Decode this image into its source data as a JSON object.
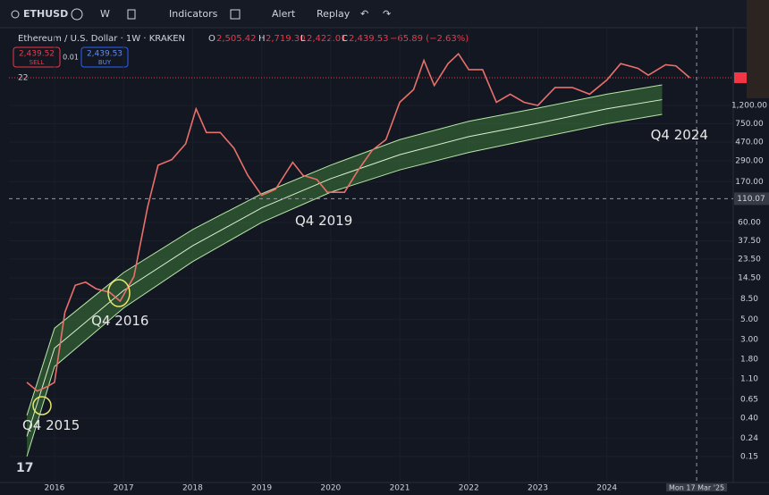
{
  "toolbar": {
    "symbol": "ETHUSD",
    "interval": "W",
    "indicators": "Indicators",
    "alert": "Alert",
    "replay": "Replay"
  },
  "legend": {
    "title": "Ethereum / U.S. Dollar · 1W · KRAKEN",
    "o_label": "O",
    "open": "2,505.42",
    "h_label": "H",
    "high": "2,719.30",
    "l_label": "L",
    "low": "2,422.01",
    "c_label": "C",
    "close": "2,439.53",
    "change": "−65.89 (−2.63%)",
    "sell_price": "2,439.52",
    "sell": "SELL",
    "spread": "0.01",
    "buy_price": "2,439.53",
    "buy": "BUY",
    "count": "22"
  },
  "chart_data": {
    "type": "line",
    "log_scale": true,
    "series": [
      {
        "color": "#e8706a",
        "x": [
          2015.6,
          2015.75,
          2015.9,
          2016.0,
          2016.15,
          2016.3,
          2016.45,
          2016.6,
          2016.8,
          2016.95,
          2017.15,
          2017.35,
          2017.5,
          2017.7,
          2017.9,
          2018.05,
          2018.2,
          2018.4,
          2018.6,
          2018.8,
          2019.0,
          2019.2,
          2019.45,
          2019.6,
          2019.8,
          2019.95,
          2020.2,
          2020.4,
          2020.6,
          2020.8,
          2021.0,
          2021.2,
          2021.35,
          2021.5,
          2021.7,
          2021.85,
          2022.0,
          2022.2,
          2022.4,
          2022.6,
          2022.8,
          2023.0,
          2023.25,
          2023.5,
          2023.75,
          2024.0,
          2024.2,
          2024.45,
          2024.6,
          2024.85,
          2025.0,
          2025.2
        ],
        "values": [
          1.0,
          0.8,
          0.9,
          1.0,
          6,
          12,
          13,
          11,
          10,
          8,
          15,
          90,
          260,
          300,
          450,
          1100,
          600,
          600,
          400,
          200,
          120,
          140,
          280,
          200,
          180,
          130,
          130,
          230,
          380,
          500,
          1300,
          1800,
          3800,
          2000,
          3500,
          4500,
          3000,
          3000,
          1300,
          1600,
          1300,
          1200,
          1900,
          1900,
          1600,
          2300,
          3500,
          3100,
          2600,
          3400,
          3300,
          2439.53
        ]
      },
      {
        "color": "#b9e6a8",
        "x": [
          2015.6,
          2016,
          2017,
          2018,
          2019,
          2020,
          2021,
          2022,
          2023,
          2024,
          2024.8
        ],
        "values": [
          0.43,
          4,
          16.6,
          50,
          125,
          260,
          500,
          800,
          1120,
          1600,
          2030
        ]
      },
      {
        "color": "#d9f2cf",
        "x": [
          2015.6,
          2016,
          2017,
          2018,
          2019,
          2020,
          2021,
          2022,
          2023,
          2024,
          2024.8
        ],
        "values": [
          0.25,
          2.4,
          10.5,
          33,
          87,
          184,
          340,
          540,
          760,
          1100,
          1390
        ]
      },
      {
        "color": "#b9e6a8",
        "x": [
          2015.6,
          2016,
          2017,
          2018,
          2019,
          2020,
          2021,
          2022,
          2023,
          2024,
          2024.8
        ],
        "values": [
          0.15,
          1.5,
          6.7,
          22,
          60,
          130,
          230,
          360,
          520,
          750,
          955
        ]
      }
    ],
    "band_color": "#3f7a3a",
    "xlim": [
      2015.34,
      2025.83
    ],
    "xticks": [
      2016,
      2017,
      2018,
      2019,
      2020,
      2021,
      2022,
      2023,
      2024
    ],
    "ylim": [
      0.077,
      8980
    ],
    "yticks": [
      0.15,
      0.24,
      {
        "value": 0.4,
        "label": "0.40"
      },
      0.65,
      {
        "value": 1.1,
        "label": "1.10"
      },
      {
        "value": 1.8,
        "label": "1.80"
      },
      {
        "value": 3,
        "label": "3.00"
      },
      {
        "value": 5,
        "label": "5.00"
      },
      {
        "value": 8.5,
        "label": "8.50"
      },
      {
        "value": 14.5,
        "label": "14.50"
      },
      {
        "value": 23.5,
        "label": "23.50"
      },
      {
        "value": 37.5,
        "label": "37.50"
      },
      {
        "value": 60,
        "label": "60.00"
      },
      {
        "value": 170,
        "label": "170.00"
      },
      {
        "value": 290,
        "label": "290.00"
      },
      {
        "value": 470,
        "label": "470.00"
      },
      {
        "value": 750,
        "label": "750.00"
      },
      {
        "value": 1200,
        "label": "1,200.00"
      }
    ],
    "crosshair": {
      "value": 110.07,
      "label": "110.07",
      "x": 2025.3,
      "date": "Mon 17 Mar '25"
    },
    "last_price": {
      "value": 2439.53,
      "color": "#f23645"
    },
    "annotations": [
      {
        "text": "Q4 2015",
        "x": 2015.95,
        "value": 0.33
      },
      {
        "text": "Q4 2016",
        "x": 2016.95,
        "value": 4.8
      },
      {
        "text": "Q4 2019",
        "x": 2019.9,
        "value": 62
      },
      {
        "text": "Q4 2024",
        "x": 2025.05,
        "value": 560
      }
    ]
  }
}
